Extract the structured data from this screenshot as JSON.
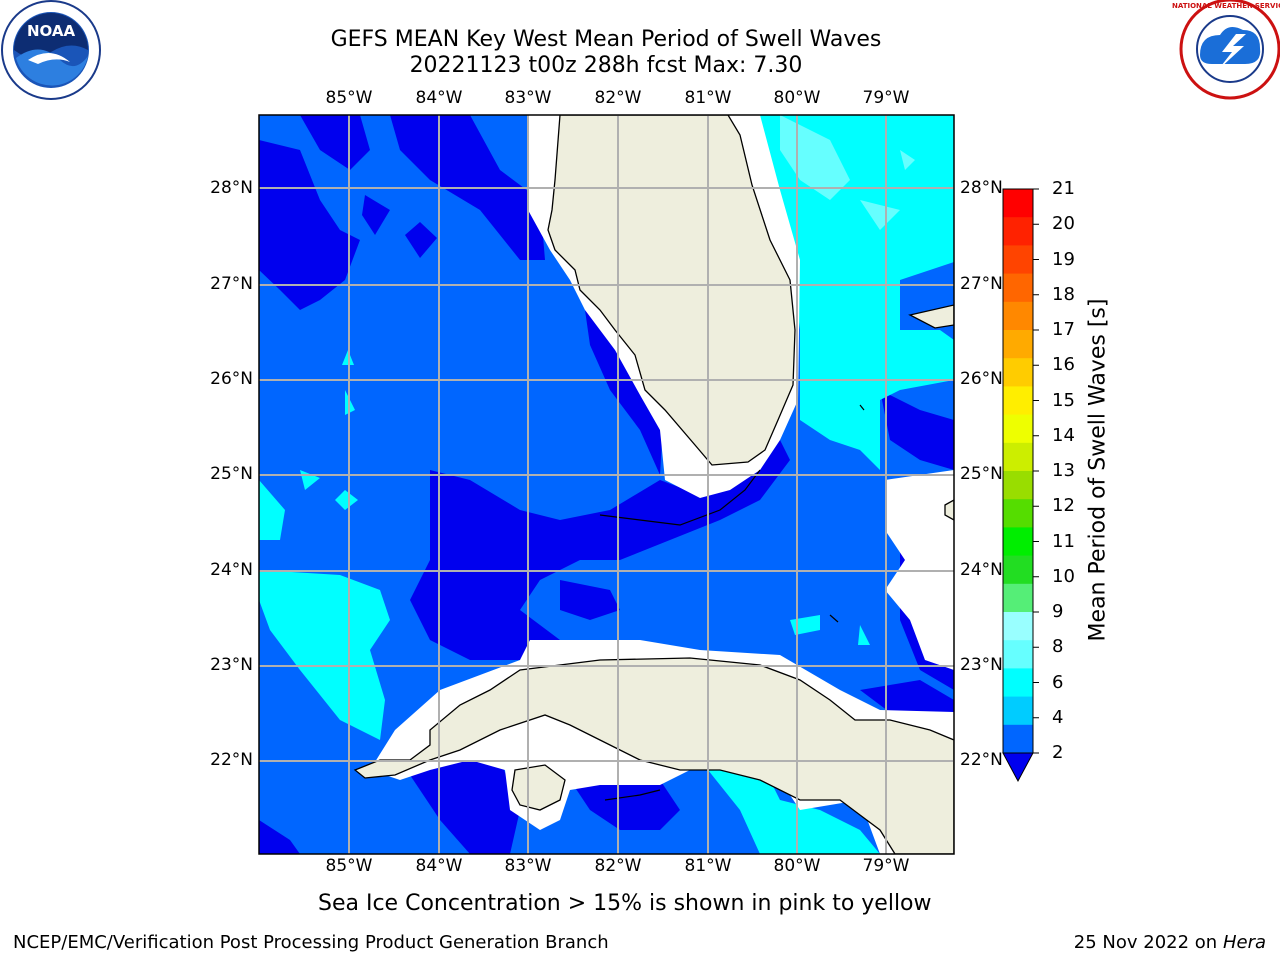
{
  "title_line1": "GEFS MEAN Key West Mean Period of Swell Waves",
  "title_line2": "20221123 t00z 288h fcst   Max: 7.30",
  "lon_labels": [
    "85°W",
    "84°W",
    "83°W",
    "82°W",
    "81°W",
    "80°W",
    "79°W"
  ],
  "lat_labels": [
    "28°N",
    "27°N",
    "26°N",
    "25°N",
    "24°N",
    "23°N",
    "22°N"
  ],
  "colorbar": {
    "label": "Mean Period of Swell Waves [s]",
    "ticks": [
      "2",
      "4",
      "6",
      "8",
      "9",
      "10",
      "11",
      "12",
      "13",
      "14",
      "15",
      "16",
      "17",
      "18",
      "19",
      "20",
      "21"
    ],
    "colors": [
      "#0066ff",
      "#00ccff",
      "#00ffff",
      "#66ffff",
      "#99ffff",
      "#55ee77",
      "#22dd22",
      "#00ee00",
      "#55dd00",
      "#99dd00",
      "#ccee00",
      "#eeff00",
      "#ffee00",
      "#ffcc00",
      "#ffaa00",
      "#ff8800",
      "#ff6600",
      "#ff4400",
      "#ff2200",
      "#ff0000"
    ]
  },
  "subtitle": "Sea Ice Concentration > 15% is shown in pink to yellow",
  "footer_left": "NCEP/EMC/Verification Post Processing Product Generation Branch",
  "footer_date": "25 Nov 2022 on",
  "footer_machine": "Hera",
  "logos": {
    "left": "NOAA",
    "right": "NATIONAL WEATHER SERVICE"
  }
}
